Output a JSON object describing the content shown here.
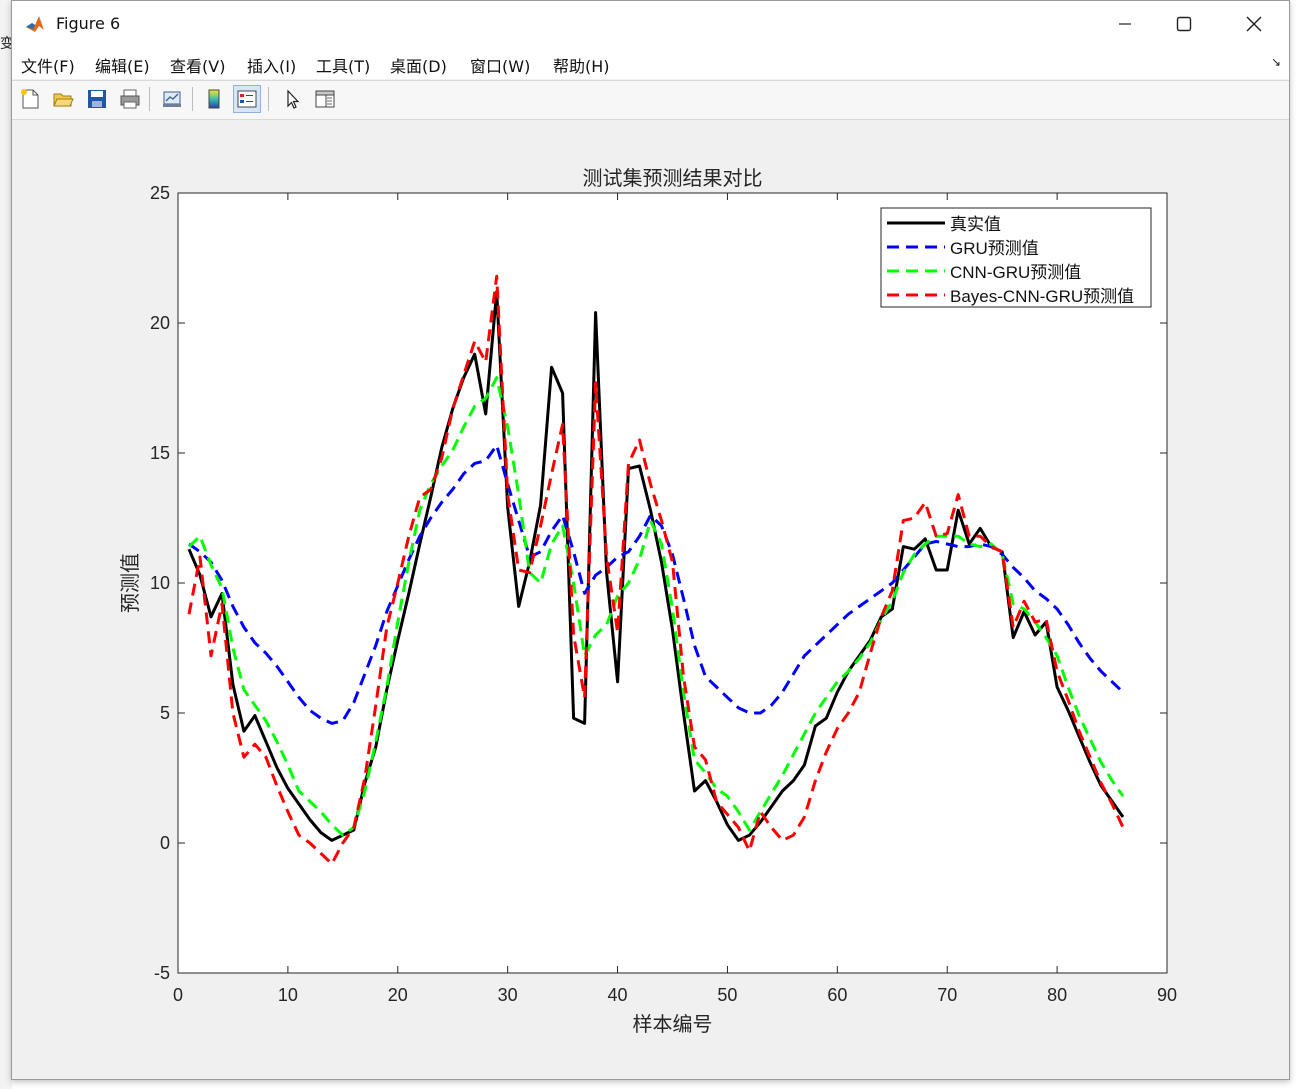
{
  "window": {
    "title": "Figure 6",
    "side_text": "变"
  },
  "menu": [
    "文件(F)",
    "编辑(E)",
    "查看(V)",
    "插入(I)",
    "工具(T)",
    "桌面(D)",
    "窗口(W)",
    "帮助(H)"
  ],
  "toolbar_icons": [
    "new-figure-icon",
    "open-file-icon",
    "save-icon",
    "print-icon",
    "link-plot-icon",
    "colorbar-icon",
    "legend-icon",
    "pointer-icon",
    "property-editor-icon"
  ],
  "colors": {
    "truth": "#000000",
    "gru": "#0000ff",
    "cnn_gru": "#00ff00",
    "bayes": "#ff0000"
  },
  "chart_data": {
    "type": "line",
    "title": "测试集预测结果对比",
    "xlabel": "样本编号",
    "ylabel": "预测值",
    "xlim": [
      0,
      90
    ],
    "ylim": [
      -5,
      25
    ],
    "xticks": [
      0,
      10,
      20,
      30,
      40,
      50,
      60,
      70,
      80,
      90
    ],
    "yticks": [
      -5,
      0,
      5,
      10,
      15,
      20,
      25
    ],
    "grid": false,
    "legend_position": "top-right",
    "x": [
      1,
      2,
      3,
      4,
      5,
      6,
      7,
      8,
      9,
      10,
      11,
      12,
      13,
      14,
      15,
      16,
      17,
      18,
      19,
      20,
      21,
      22,
      23,
      24,
      25,
      26,
      27,
      28,
      29,
      30,
      31,
      32,
      33,
      34,
      35,
      36,
      37,
      38,
      39,
      40,
      41,
      42,
      43,
      44,
      45,
      46,
      47,
      48,
      49,
      50,
      51,
      52,
      53,
      54,
      55,
      56,
      57,
      58,
      59,
      60,
      61,
      62,
      63,
      64,
      65,
      66,
      67,
      68,
      69,
      70,
      71,
      72,
      73,
      74,
      75,
      76,
      77,
      78,
      79,
      80,
      81,
      82,
      83,
      84,
      85,
      86
    ],
    "series": [
      {
        "name": "真实值",
        "style": "solid",
        "color": "#000000",
        "values": [
          11.3,
          10.3,
          8.7,
          9.6,
          6.1,
          4.3,
          4.9,
          3.9,
          2.9,
          2.1,
          1.5,
          0.9,
          0.4,
          0.1,
          0.3,
          0.5,
          2.3,
          3.7,
          5.9,
          7.8,
          9.6,
          11.5,
          13.3,
          15.2,
          16.7,
          17.9,
          18.8,
          16.5,
          21.2,
          12.9,
          9.1,
          10.8,
          13.0,
          18.3,
          17.3,
          4.8,
          4.6,
          20.4,
          10.4,
          6.2,
          14.4,
          14.5,
          12.8,
          10.8,
          8.2,
          5.0,
          2.0,
          2.4,
          1.6,
          0.7,
          0.1,
          0.3,
          0.8,
          1.4,
          2.0,
          2.4,
          3.0,
          4.5,
          4.8,
          5.8,
          6.6,
          7.2,
          7.8,
          8.7,
          9.0,
          11.4,
          11.3,
          11.7,
          10.5,
          10.5,
          12.8,
          11.5,
          12.1,
          11.4,
          11.2,
          7.9,
          8.9,
          8.0,
          8.5,
          6.0,
          5.1,
          4.1,
          3.1,
          2.2,
          1.6,
          1.0
        ]
      },
      {
        "name": "GRU预测值",
        "style": "dashed",
        "color": "#0000ff",
        "values": [
          11.5,
          11.2,
          10.8,
          10.1,
          9.1,
          8.3,
          7.7,
          7.3,
          6.8,
          6.2,
          5.6,
          5.1,
          4.8,
          4.6,
          4.7,
          5.4,
          6.5,
          7.6,
          8.9,
          9.9,
          10.9,
          11.8,
          12.5,
          13.1,
          13.6,
          14.2,
          14.6,
          14.7,
          15.3,
          13.8,
          12.4,
          11.0,
          11.2,
          12.0,
          12.6,
          11.2,
          9.6,
          10.3,
          10.6,
          11.0,
          11.2,
          11.8,
          12.6,
          12.2,
          11.1,
          9.4,
          7.6,
          6.4,
          6.0,
          5.6,
          5.2,
          5.0,
          5.0,
          5.3,
          5.8,
          6.5,
          7.2,
          7.6,
          8.0,
          8.4,
          8.8,
          9.1,
          9.4,
          9.7,
          10.0,
          10.5,
          11.0,
          11.5,
          11.6,
          11.5,
          11.4,
          11.4,
          11.5,
          11.4,
          11.1,
          10.6,
          10.2,
          9.7,
          9.4,
          9.0,
          8.4,
          7.7,
          7.1,
          6.6,
          6.2,
          5.8
        ]
      },
      {
        "name": "CNN-GRU预测值",
        "style": "dashed",
        "color": "#00ff00",
        "values": [
          11.4,
          11.8,
          10.7,
          9.8,
          7.5,
          5.9,
          5.3,
          4.7,
          3.9,
          3.0,
          2.0,
          1.6,
          1.2,
          0.7,
          0.3,
          0.6,
          2.0,
          3.9,
          6.0,
          8.5,
          10.8,
          12.8,
          13.8,
          14.5,
          15.1,
          16.0,
          16.8,
          17.1,
          17.9,
          16.0,
          13.4,
          10.4,
          10.0,
          11.5,
          12.2,
          10.0,
          7.2,
          8.0,
          8.4,
          9.5,
          10.0,
          10.9,
          12.4,
          11.5,
          9.0,
          5.8,
          3.2,
          2.7,
          2.1,
          1.8,
          1.2,
          0.5,
          1.2,
          1.9,
          2.6,
          3.4,
          4.2,
          5.0,
          5.6,
          6.2,
          6.6,
          7.1,
          7.7,
          8.6,
          9.3,
          10.4,
          11.1,
          11.5,
          11.8,
          11.8,
          11.8,
          11.5,
          11.4,
          11.5,
          11.1,
          9.2,
          9.0,
          8.5,
          7.9,
          7.2,
          6.0,
          4.9,
          4.0,
          3.1,
          2.4,
          1.8
        ]
      },
      {
        "name": "Bayes-CNN-GRU预测值",
        "style": "dashed",
        "color": "#ff0000",
        "values": [
          8.8,
          11.0,
          7.2,
          9.2,
          5.0,
          3.3,
          3.8,
          3.3,
          2.2,
          1.2,
          0.3,
          0.0,
          -0.4,
          -0.8,
          0.0,
          0.6,
          2.5,
          5.3,
          8.3,
          10.0,
          11.8,
          13.3,
          13.6,
          14.8,
          16.7,
          18.0,
          19.3,
          18.5,
          21.8,
          13.4,
          10.5,
          10.4,
          12.2,
          14.2,
          16.1,
          8.0,
          5.6,
          17.7,
          11.0,
          8.1,
          14.6,
          15.5,
          13.8,
          12.4,
          10.8,
          6.4,
          3.7,
          3.2,
          1.6,
          1.1,
          0.6,
          -0.3,
          1.2,
          0.6,
          0.1,
          0.3,
          1.0,
          2.4,
          3.5,
          4.4,
          5.0,
          5.8,
          7.3,
          8.7,
          9.7,
          12.4,
          12.5,
          13.1,
          11.8,
          11.9,
          13.4,
          11.8,
          11.8,
          11.4,
          11.2,
          8.3,
          9.3,
          8.5,
          8.6,
          6.6,
          5.5,
          4.3,
          3.3,
          2.3,
          1.5,
          0.6
        ]
      }
    ]
  }
}
